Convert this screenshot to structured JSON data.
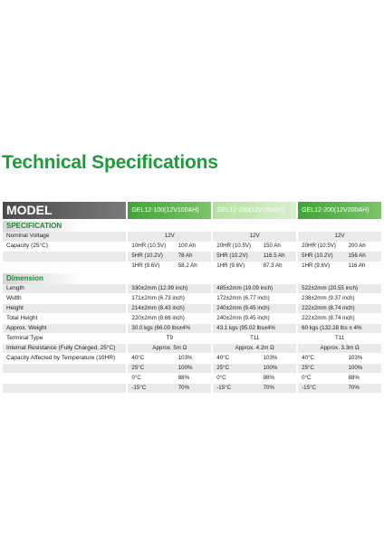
{
  "title": "Technical Specifications",
  "model_label": "MODEL",
  "models": [
    "GEL12-100(12V100AH)",
    "GEL12-150(12V150AH)",
    "GEL12-200(12V200AH)"
  ],
  "spec_label": "SPECIFICATION",
  "dim_label": "Dimension",
  "spec_rows": [
    {
      "label": "Nominal Voltage",
      "cells": [
        {
          "a": "12V"
        },
        {
          "a": "12V"
        },
        {
          "a": "12V"
        }
      ],
      "center": true
    },
    {
      "label": "Capacity (25°C)",
      "cells": [
        {
          "a": "10HR (10.5V)",
          "b": "100 Ah"
        },
        {
          "a": "20HR (10.5V)",
          "b": "150 Ah"
        },
        {
          "a": "20HR (10.5V)",
          "b": "200 Ah"
        }
      ]
    },
    {
      "label": "",
      "cells": [
        {
          "a": "5HR (10.2V)",
          "b": "78 Ah"
        },
        {
          "a": "5HR (10.2V)",
          "b": "116.5 Ah"
        },
        {
          "a": "5HR (10.2V)",
          "b": "156 Ah"
        }
      ]
    },
    {
      "label": "",
      "cells": [
        {
          "a": "1HR (9.6V)",
          "b": "58.2 Ah"
        },
        {
          "a": "1HR (9.6V)",
          "b": "87.3 Ah"
        },
        {
          "a": "1HR (9.6V)",
          "b": "116 Ah"
        }
      ]
    }
  ],
  "dim_rows": [
    {
      "label": "Length",
      "cells": [
        {
          "a": "330±2mm (12.99 inch)"
        },
        {
          "a": "485±2mm (19.09 inch)"
        },
        {
          "a": "522±2mm (20.55 inch)"
        }
      ]
    },
    {
      "label": "Width",
      "cells": [
        {
          "a": "171±2mm (6.73 inch)"
        },
        {
          "a": "172±2mm (6.77 inch)"
        },
        {
          "a": "238±2mm (9.37 inch)"
        }
      ]
    },
    {
      "label": "Height",
      "cells": [
        {
          "a": "214±2mm (8.43 inch)"
        },
        {
          "a": "240±2mm (9.45 inch)"
        },
        {
          "a": "222±2mm (8.74 inch)"
        }
      ]
    },
    {
      "label": "Total Height",
      "cells": [
        {
          "a": "220±2mm (8.66 inch)"
        },
        {
          "a": "240±2mm (9.45 inch)"
        },
        {
          "a": "222±2mm (8.74 inch)"
        }
      ]
    },
    {
      "label": "Approx. Weight",
      "cells": [
        {
          "a": "30.0 kgs (66.00 lbs±4%"
        },
        {
          "a": "43.1 kgs (95.02 lbs±4%"
        },
        {
          "a": "60 kgs (132.28 lbs ± 4%"
        }
      ]
    },
    {
      "label": "Terminal Type",
      "cells": [
        {
          "a": "T9"
        },
        {
          "a": "T11"
        },
        {
          "a": "T11"
        }
      ],
      "center": true
    },
    {
      "label": "Internal Resistance (Fully Charged, 25°C)",
      "cells": [
        {
          "a": "Approx. 5m Ω"
        },
        {
          "a": "Approx. 4.2m Ω"
        },
        {
          "a": "Approx. 3.3m Ω"
        }
      ],
      "center": true
    },
    {
      "label": "Capacity Affected by Temperature (10HR)",
      "cells": [
        {
          "a": "40°C",
          "b": "103%"
        },
        {
          "a": "40°C",
          "b": "103%"
        },
        {
          "a": "40°C",
          "b": "103%"
        }
      ]
    },
    {
      "label": "",
      "cells": [
        {
          "a": "25°C",
          "b": "100%"
        },
        {
          "a": "25°C",
          "b": "100%"
        },
        {
          "a": "25°C",
          "b": "100%"
        }
      ]
    },
    {
      "label": "",
      "cells": [
        {
          "a": "0°C",
          "b": "88%"
        },
        {
          "a": "0°C",
          "b": "88%"
        },
        {
          "a": "0°C",
          "b": "88%"
        }
      ]
    },
    {
      "label": "",
      "cells": [
        {
          "a": "-15°C",
          "b": "70%"
        },
        {
          "a": "-15°C",
          "b": "70%"
        },
        {
          "a": "-15°C",
          "b": "70%"
        }
      ]
    }
  ],
  "colors": {
    "accent": "#1f9b3d",
    "header_dark": "#4a4a4a"
  }
}
